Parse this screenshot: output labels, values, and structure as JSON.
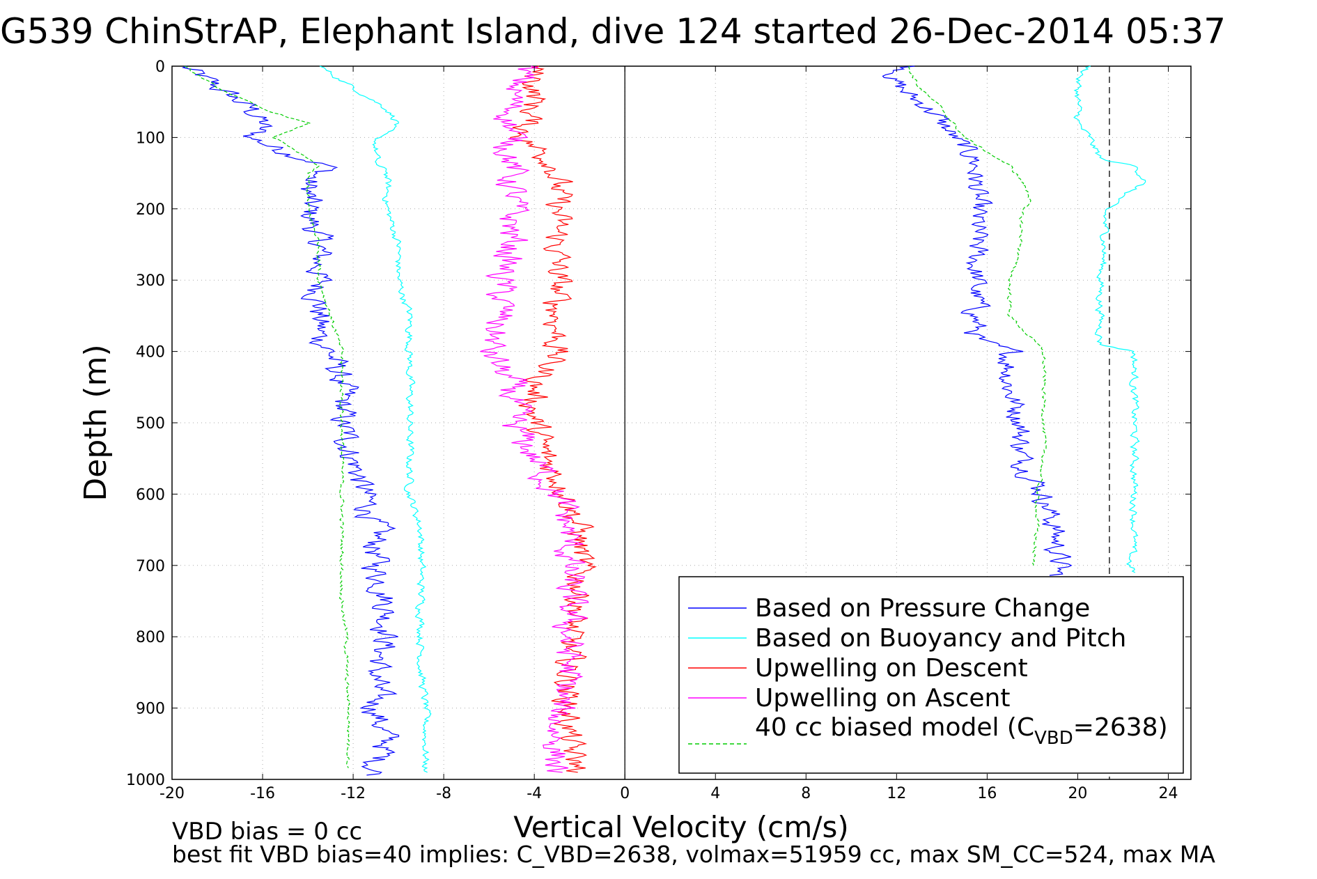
{
  "chart_data": {
    "type": "line",
    "title": "G539 ChinStrAP, Elephant Island, dive 124 started 26-Dec-2014 05:37",
    "xlabel": "Vertical Velocity (cm/s)",
    "ylabel": "Depth (m)",
    "xlim": [
      -20,
      25
    ],
    "ylim": [
      1000,
      0
    ],
    "y_reversed": true,
    "grid": "dotted",
    "xticks": [
      -20,
      -16,
      -12,
      -8,
      -4,
      0,
      4,
      8,
      12,
      16,
      20,
      24
    ],
    "xtick_labels": [
      "-20",
      "-16",
      "-12",
      "-8",
      "-4",
      "0",
      "4",
      "8",
      "12",
      "16",
      "20",
      "24"
    ],
    "yticks": [
      0,
      100,
      200,
      300,
      400,
      500,
      600,
      700,
      800,
      900,
      1000
    ],
    "ytick_labels": [
      "0",
      "100",
      "200",
      "300",
      "400",
      "500",
      "600",
      "700",
      "800",
      "900",
      "1000"
    ],
    "reference_lines": [
      {
        "x": 0,
        "style": "solid"
      },
      {
        "x": 21.4,
        "style": "dashed"
      }
    ],
    "legend": {
      "position": "bottom-right",
      "entries": [
        {
          "label": "Based on Pressure Change",
          "color": "#0000ff",
          "style": "solid"
        },
        {
          "label": "Based on Buoyancy and Pitch",
          "color": "#00ffff",
          "style": "solid"
        },
        {
          "label": "Upwelling on Descent",
          "color": "#ff0000",
          "style": "solid"
        },
        {
          "label": "Upwelling on Ascent",
          "color": "#ff00ff",
          "style": "solid"
        },
        {
          "label_prefix": "40 cc biased model (C",
          "label_sub": "VBD",
          "label_suffix": "=2638)",
          "color": "#00cc00",
          "style": "dashed"
        }
      ]
    },
    "annotations": [
      "VBD bias = 0 cc",
      "best fit VBD bias=40 implies: C_VBD=2638, volmax=51959 cc, max SM_CC=524, max MA"
    ],
    "series": [
      {
        "name": "Based on Pressure Change",
        "segment": "descent",
        "color": "#0000ff",
        "depth": [
          0,
          20,
          40,
          60,
          80,
          100,
          120,
          140,
          160,
          200,
          250,
          300,
          350,
          380,
          400,
          450,
          500,
          550,
          600,
          650,
          700,
          750,
          800,
          850,
          900,
          950,
          980,
          995
        ],
        "velocity": [
          -19.5,
          -18.5,
          -17.5,
          -16.5,
          -16,
          -16.5,
          -15,
          -13,
          -14,
          -14,
          -13.5,
          -13.5,
          -13.5,
          -13.5,
          -13,
          -12.5,
          -12.5,
          -12,
          -11.5,
          -11,
          -11,
          -10.5,
          -10.5,
          -11,
          -11,
          -10.5,
          -11,
          -11
        ],
        "noise": 0.7
      },
      {
        "name": "Based on Pressure Change",
        "segment": "ascent",
        "color": "#0000ff",
        "depth": [
          0,
          20,
          40,
          60,
          80,
          100,
          130,
          160,
          200,
          250,
          300,
          350,
          385,
          400,
          450,
          500,
          550,
          600,
          650,
          700,
          715
        ],
        "velocity": [
          12.5,
          11.8,
          12.5,
          13.5,
          14,
          14.5,
          15.5,
          15.5,
          15.5,
          15.5,
          15.5,
          15.5,
          15.5,
          17,
          17,
          17.5,
          17.5,
          18.5,
          19,
          19.2,
          19
        ],
        "noise": 0.6
      },
      {
        "name": "Based on Buoyancy and Pitch",
        "segment": "descent",
        "color": "#00ffff",
        "depth": [
          0,
          20,
          40,
          60,
          80,
          100,
          120,
          140,
          145,
          200,
          250,
          300,
          350,
          400,
          450,
          500,
          550,
          600,
          650,
          700,
          750,
          800,
          850,
          900,
          950,
          990
        ],
        "velocity": [
          -13.5,
          -12.5,
          -11.5,
          -10.5,
          -10,
          -11,
          -11,
          -11,
          -10.5,
          -10.5,
          -10,
          -10,
          -9.5,
          -9.5,
          -9.5,
          -9.5,
          -9.5,
          -9.5,
          -9,
          -9,
          -9,
          -9,
          -9,
          -8.8,
          -8.8,
          -8.8
        ],
        "noise": 0.2
      },
      {
        "name": "Based on Buoyancy and Pitch",
        "segment": "ascent",
        "color": "#00ffff",
        "depth": [
          0,
          20,
          40,
          60,
          80,
          100,
          130,
          140,
          160,
          200,
          250,
          300,
          350,
          390,
          400,
          450,
          500,
          550,
          600,
          650,
          700,
          710
        ],
        "velocity": [
          20.5,
          20,
          20,
          20,
          20,
          20.5,
          21,
          22.5,
          23,
          21.2,
          21.2,
          21,
          21,
          21,
          22.5,
          22.5,
          22.5,
          22.5,
          22.5,
          22.5,
          22.3,
          22.5
        ],
        "noise": 0.2
      },
      {
        "name": "Upwelling on Descent",
        "color": "#ff0000",
        "depth": [
          0,
          50,
          100,
          140,
          200,
          250,
          300,
          350,
          400,
          450,
          500,
          550,
          600,
          650,
          700,
          750,
          800,
          850,
          900,
          950,
          990
        ],
        "velocity": [
          -4,
          -4,
          -4.5,
          -3,
          -3,
          -3,
          -3,
          -3,
          -3,
          -4,
          -4,
          -3.5,
          -2.5,
          -2,
          -2,
          -2,
          -2.5,
          -2.5,
          -2.5,
          -2.5,
          -2
        ],
        "noise": 0.7
      },
      {
        "name": "Upwelling on Ascent",
        "color": "#ff00ff",
        "depth": [
          0,
          50,
          100,
          140,
          200,
          250,
          300,
          350,
          400,
          450,
          500,
          550,
          600,
          650,
          700,
          750,
          800,
          850,
          900,
          950,
          990
        ],
        "velocity": [
          -4.5,
          -5,
          -5,
          -5,
          -5,
          -5,
          -5.5,
          -5.5,
          -6,
          -5,
          -5,
          -4,
          -3,
          -2.5,
          -2.5,
          -2.5,
          -2.5,
          -2.5,
          -3,
          -3,
          -3
        ],
        "noise": 0.8
      },
      {
        "name": "40 cc biased model (C_VBD=2638)",
        "segment": "descent",
        "color": "#00cc00",
        "depth": [
          0,
          30,
          60,
          80,
          100,
          140,
          150,
          200,
          250,
          300,
          350,
          400,
          450,
          480,
          500,
          550,
          600,
          650,
          700,
          750,
          800,
          850,
          900,
          950,
          985
        ],
        "velocity": [
          -19.5,
          -18,
          -16,
          -14,
          -15.5,
          -13.5,
          -14,
          -14,
          -13.5,
          -13.5,
          -13,
          -12.5,
          -12.5,
          -12.5,
          -12.5,
          -12.5,
          -12.5,
          -12.5,
          -12.5,
          -12.5,
          -12.3,
          -12.3,
          -12.2,
          -12.2,
          -12.2
        ],
        "noise": 0.1
      },
      {
        "name": "40 cc biased model (C_VBD=2638)",
        "segment": "ascent",
        "color": "#00cc00",
        "depth": [
          0,
          30,
          60,
          100,
          140,
          160,
          190,
          200,
          250,
          300,
          350,
          400,
          450,
          500,
          550,
          600,
          650,
          700
        ],
        "velocity": [
          12.5,
          13,
          14,
          15,
          17,
          17.5,
          18,
          17.5,
          17.5,
          17,
          17,
          18.5,
          18.5,
          18.5,
          18.5,
          18.2,
          18.2,
          18
        ],
        "noise": 0.1
      }
    ]
  }
}
